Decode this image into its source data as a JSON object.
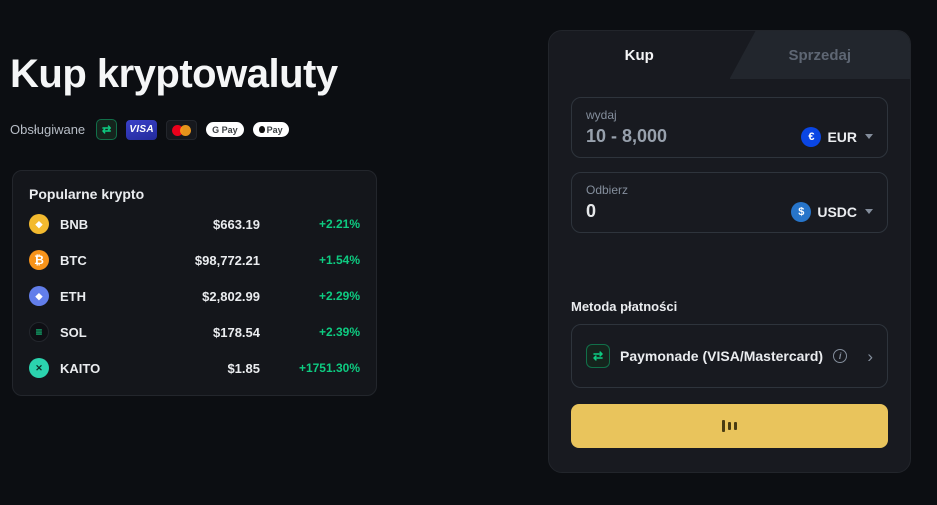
{
  "page": {
    "title": "Kup kryptowaluty",
    "supported_label": "Obsługiwane"
  },
  "supported_badges": {
    "paymonade_icon": "paymonade-icon",
    "visa_label": "VISA",
    "mastercard_icon": "mastercard-icon",
    "gpay_label": "G Pay",
    "applepay_label": "Pay"
  },
  "popular": {
    "title": "Popularne krypto",
    "rows": [
      {
        "symbol": "BNB",
        "icon": "bnb-coin-icon",
        "price": "$663.19",
        "change": "+2.21%"
      },
      {
        "symbol": "BTC",
        "icon": "btc-coin-icon",
        "price": "$98,772.21",
        "change": "+1.54%"
      },
      {
        "symbol": "ETH",
        "icon": "eth-coin-icon",
        "price": "$2,802.99",
        "change": "+2.29%"
      },
      {
        "symbol": "SOL",
        "icon": "sol-coin-icon",
        "price": "$178.54",
        "change": "+2.39%"
      },
      {
        "symbol": "KAITO",
        "icon": "kaito-coin-icon",
        "price": "$1.85",
        "change": "+1751.30%"
      }
    ]
  },
  "widget": {
    "tabs": [
      {
        "label": "Kup",
        "active": true
      },
      {
        "label": "Sprzedaj",
        "active": false
      }
    ],
    "spend": {
      "label": "wydaj",
      "value": "10 - 8,000",
      "currency": "EUR",
      "currency_icon": "eur-coin-icon"
    },
    "receive": {
      "label": "Odbierz",
      "value": "0",
      "currency": "USDC",
      "currency_icon": "usdc-coin-icon"
    },
    "payment_method_label": "Metoda płatności",
    "payment_method": {
      "name": "Paymonade (VISA/Mastercard)",
      "icon": "paymonade-icon"
    },
    "buy_button": {
      "icon": "loading-bars-icon"
    }
  },
  "colors": {
    "positive_green": "#0ECB81",
    "accent_yellow": "#E9C45C",
    "background": "#0C0E12",
    "card": "#181A20"
  }
}
